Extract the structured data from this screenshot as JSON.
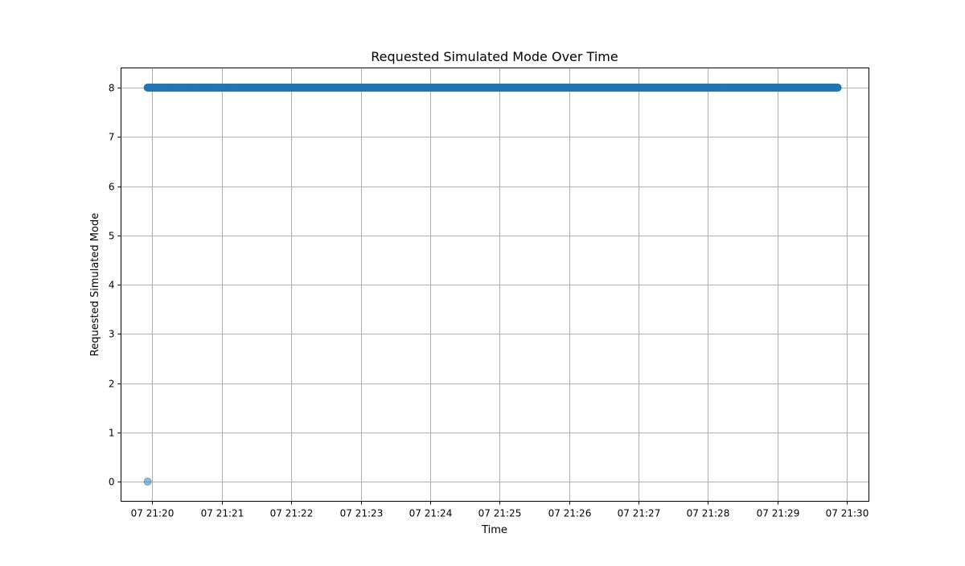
{
  "chart_data": {
    "type": "scatter",
    "title": "Requested Simulated Mode Over Time",
    "xlabel": "Time",
    "ylabel": "Requested Simulated Mode",
    "x_axis": {
      "type": "time",
      "range": [
        "07 21:19:33",
        "07 21:30:19"
      ],
      "ticks": [
        "07 21:20",
        "07 21:21",
        "07 21:22",
        "07 21:23",
        "07 21:24",
        "07 21:25",
        "07 21:26",
        "07 21:27",
        "07 21:28",
        "07 21:29",
        "07 21:30"
      ]
    },
    "y_axis": {
      "range": [
        -0.4,
        8.4
      ],
      "ticks": [
        0,
        1,
        2,
        3,
        4,
        5,
        6,
        7,
        8
      ]
    },
    "grid": true,
    "series": [
      {
        "color": "#1f77b4",
        "alpha": 0.5,
        "segments": [
          {
            "x_start": "07 21:19:56",
            "x_end": "07 21:29:52",
            "y": 8
          }
        ],
        "points": [
          {
            "x": "07 21:19:56",
            "y": 0
          }
        ]
      }
    ]
  }
}
